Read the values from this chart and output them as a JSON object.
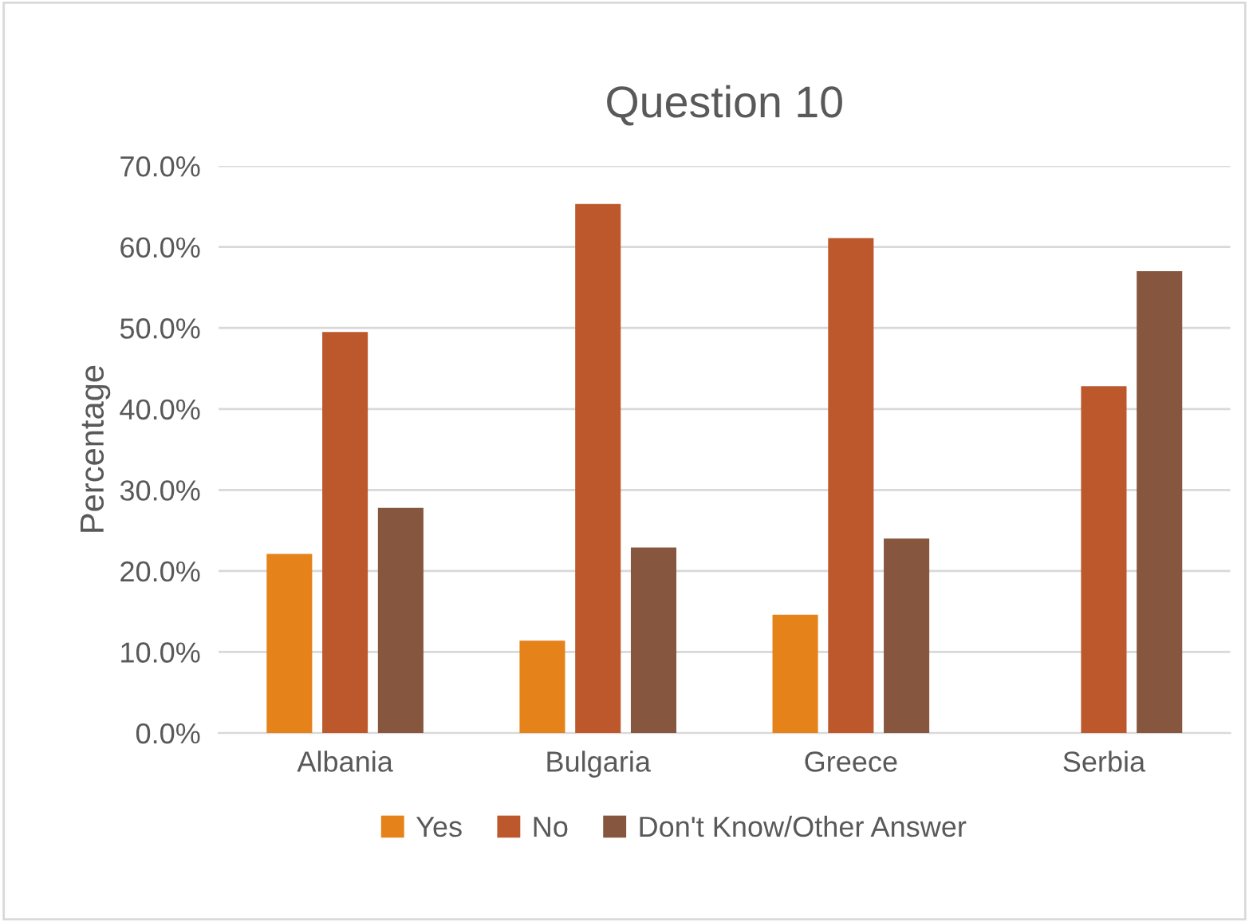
{
  "chart_data": {
    "type": "bar",
    "title": "Question 10",
    "ylabel": "Percentage",
    "categories": [
      "Albania",
      "Bulgaria",
      "Greece",
      "Serbia"
    ],
    "series": [
      {
        "name": "Yes",
        "color": "#e5831a",
        "values": [
          22.1,
          11.4,
          14.6,
          0
        ]
      },
      {
        "name": "No",
        "color": "#bc582c",
        "values": [
          49.5,
          65.3,
          61.1,
          42.8
        ]
      },
      {
        "name": "Don't Know/Other Answer",
        "color": "#87563e",
        "values": [
          27.8,
          22.9,
          24.0,
          57.0
        ]
      }
    ],
    "ylim": [
      0,
      70
    ],
    "yticks": [
      {
        "value": 0,
        "label": "0.0%"
      },
      {
        "value": 10,
        "label": "10.0%"
      },
      {
        "value": 20,
        "label": "20.0%"
      },
      {
        "value": 30,
        "label": "30.0%"
      },
      {
        "value": 40,
        "label": "40.0%"
      },
      {
        "value": 50,
        "label": "50.0%"
      },
      {
        "value": 60,
        "label": "60.0%"
      },
      {
        "value": 70,
        "label": "70.0%"
      }
    ],
    "grid": "y",
    "legend": "bottom"
  }
}
